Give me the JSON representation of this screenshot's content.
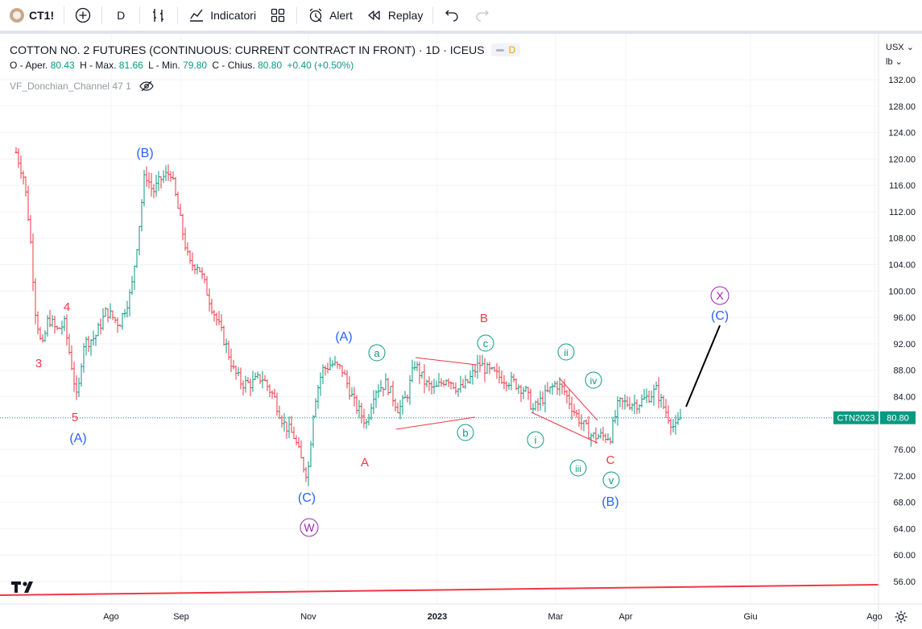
{
  "toolbar": {
    "symbol": "CT1!",
    "interval": "D",
    "indicators_label": "Indicatori",
    "alert_label": "Alert",
    "replay_label": "Replay"
  },
  "legend": {
    "title": "COTTON NO. 2 FUTURES (CONTINUOUS: CURRENT CONTRACT IN FRONT) · 1D · ICEUS",
    "badge": "D",
    "o_label": "O - Aper.",
    "o_val": "80.43",
    "h_label": "H - Max.",
    "h_val": "81.66",
    "l_label": "L - Min.",
    "l_val": "79.80",
    "c_label": "C - Chius.",
    "c_val": "80.80",
    "change": "+0.40 (+0.50%)",
    "indicator": "VF_Donchian_Channel 47 1"
  },
  "axis": {
    "currency": "USX",
    "unit": "lb",
    "price_labels": [
      "132.00",
      "128.00",
      "124.00",
      "120.00",
      "116.00",
      "112.00",
      "108.00",
      "104.00",
      "100.00",
      "96.00",
      "92.00",
      "88.00",
      "84.00",
      "76.00",
      "72.00",
      "68.00",
      "64.00",
      "60.00",
      "56.00"
    ],
    "time_labels": [
      "Ago",
      "Sep",
      "Nov",
      "2023",
      "Mar",
      "Apr",
      "Giu",
      "Ago"
    ],
    "last_price": "80.80",
    "last_symbol": "CTN2023"
  },
  "wave_labels": {
    "red": [
      "3",
      "4",
      "5",
      "A",
      "B",
      "C"
    ],
    "blue": [
      "(A)",
      "(B)",
      "(C)",
      "(A)",
      "(B)",
      "(C)"
    ],
    "green": [
      "a",
      "b",
      "c",
      "i",
      "ii",
      "iii",
      "iv",
      "v"
    ],
    "purple": [
      "W",
      "X"
    ]
  },
  "colors": {
    "up": "#089981",
    "down": "#f23645",
    "blue_label": "#2962ff",
    "red_label": "#f23645",
    "green_label": "#089981",
    "purple_label": "#9c27b0",
    "grid": "#f0f3fa"
  }
}
